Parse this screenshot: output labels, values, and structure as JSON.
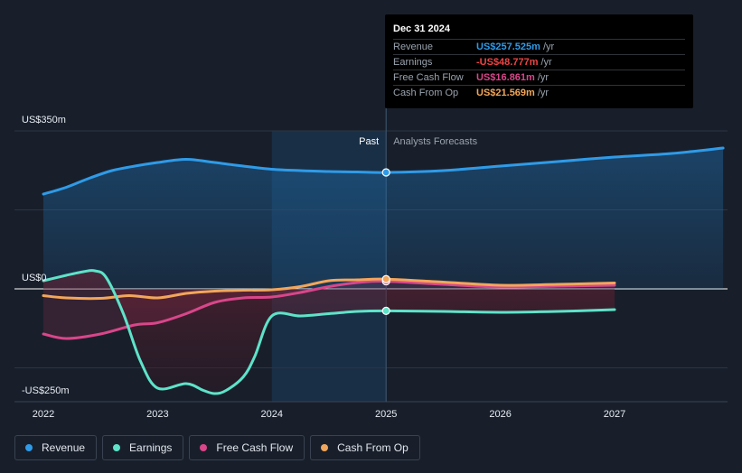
{
  "chart_data": {
    "type": "line",
    "x_tick_labels": [
      "2022",
      "2023",
      "2024",
      "2025",
      "2026",
      "2027"
    ],
    "y_tick_labels": [
      "US$350m",
      "US$0",
      "-US$250m"
    ],
    "ylim": [
      -250,
      350
    ],
    "xlim": [
      2021.8,
      2027.95
    ],
    "past_label": "Past",
    "forecast_label": "Analysts Forecasts",
    "forecast_start": 2025.0,
    "highlight_start": 2024.0,
    "tooltip": {
      "date": "Dec 31 2024",
      "rows": [
        {
          "name": "Revenue",
          "value": "US$257.525m",
          "unit": "/yr",
          "color": "#2f9be8"
        },
        {
          "name": "Earnings",
          "value": "-US$48.777m",
          "unit": "/yr",
          "color": "#ef4444"
        },
        {
          "name": "Free Cash Flow",
          "value": "US$16.861m",
          "unit": "/yr",
          "color": "#d9468a"
        },
        {
          "name": "Cash From Op",
          "value": "US$21.569m",
          "unit": "/yr",
          "color": "#f2a65a"
        }
      ]
    },
    "series": [
      {
        "name": "Revenue",
        "color": "#2f9be8",
        "x": [
          2022.0,
          2022.2,
          2022.4,
          2022.6,
          2022.8,
          2023.0,
          2023.25,
          2023.5,
          2023.75,
          2024.0,
          2024.25,
          2024.5,
          2024.75,
          2025.0,
          2025.5,
          2026.0,
          2026.5,
          2027.0,
          2027.5,
          2027.95
        ],
        "y": [
          210,
          225,
          245,
          262,
          272,
          280,
          287,
          280,
          272,
          265,
          262,
          260,
          259,
          258,
          262,
          272,
          282,
          292,
          300,
          312
        ]
      },
      {
        "name": "Earnings",
        "color": "#5ee3c9",
        "x": [
          2022.0,
          2022.2,
          2022.35,
          2022.45,
          2022.55,
          2022.7,
          2022.85,
          2023.0,
          2023.25,
          2023.4,
          2023.5,
          2023.6,
          2023.75,
          2023.85,
          2024.0,
          2024.25,
          2024.5,
          2024.75,
          2025.0,
          2025.5,
          2026.0,
          2026.5,
          2027.0
        ],
        "y": [
          18,
          30,
          38,
          40,
          25,
          -55,
          -160,
          -220,
          -210,
          -225,
          -232,
          -225,
          -195,
          -150,
          -60,
          -60,
          -55,
          -50,
          -48.777,
          -50,
          -52,
          -50,
          -46
        ]
      },
      {
        "name": "Free Cash Flow",
        "color": "#d9468a",
        "x": [
          2022.0,
          2022.2,
          2022.5,
          2022.8,
          2023.0,
          2023.25,
          2023.5,
          2023.75,
          2024.0,
          2024.25,
          2024.5,
          2024.75,
          2025.0,
          2025.5,
          2026.0,
          2026.5,
          2027.0
        ],
        "y": [
          -100,
          -110,
          -100,
          -80,
          -75,
          -55,
          -30,
          -20,
          -18,
          -8,
          5,
          14,
          16.861,
          10,
          4,
          6,
          8
        ]
      },
      {
        "name": "Cash From Op",
        "color": "#f2a65a",
        "x": [
          2022.0,
          2022.2,
          2022.5,
          2022.75,
          2023.0,
          2023.25,
          2023.5,
          2023.75,
          2024.0,
          2024.25,
          2024.5,
          2024.75,
          2025.0,
          2025.5,
          2026.0,
          2026.5,
          2027.0
        ],
        "y": [
          -15,
          -20,
          -21,
          -15,
          -20,
          -10,
          -5,
          -3,
          -2,
          5,
          18,
          20,
          21.569,
          15,
          8,
          10,
          13
        ]
      }
    ],
    "legend": [
      "Revenue",
      "Earnings",
      "Free Cash Flow",
      "Cash From Op"
    ]
  }
}
